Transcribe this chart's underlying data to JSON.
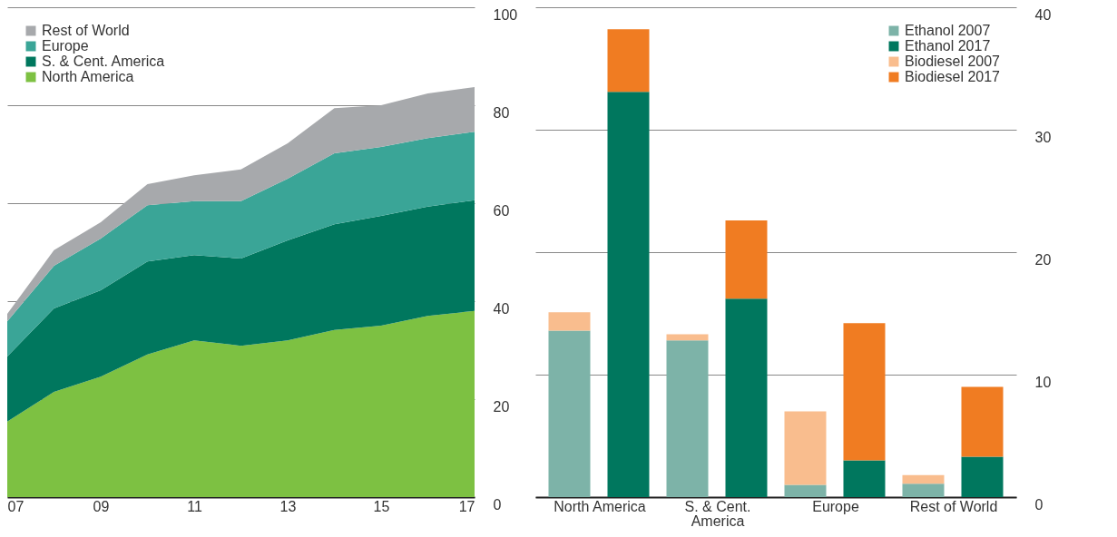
{
  "chart_data": [
    {
      "type": "area",
      "stacked": true,
      "x": [
        2007,
        2008,
        2009,
        2010,
        2011,
        2012,
        2013,
        2014,
        2015,
        2016,
        2017
      ],
      "xlim": [
        2007,
        2017
      ],
      "xticks": [
        {
          "value": 2007,
          "label": "07"
        },
        {
          "value": 2009,
          "label": "09"
        },
        {
          "value": 2011,
          "label": "11"
        },
        {
          "value": 2013,
          "label": "13"
        },
        {
          "value": 2015,
          "label": "15"
        },
        {
          "value": 2017,
          "label": "17"
        }
      ],
      "ylim": [
        0,
        100
      ],
      "yticks": [
        0,
        20,
        40,
        60,
        80,
        100
      ],
      "grid": "y",
      "legend": "top left",
      "series": [
        {
          "name": "North America",
          "color": "#7dc142",
          "values": [
            15.4,
            21.5,
            24.6,
            29.1,
            32.0,
            30.9,
            32.0,
            34.1,
            35.0,
            37.0,
            38.0
          ]
        },
        {
          "name": "S. & Cent. America",
          "color": "#00775e",
          "values": [
            13.3,
            17.0,
            17.6,
            19.0,
            17.4,
            17.8,
            20.4,
            21.6,
            22.4,
            22.3,
            22.6
          ]
        },
        {
          "name": "Europe",
          "color": "#3aa597",
          "values": [
            7.2,
            8.7,
            10.6,
            11.5,
            11.0,
            11.7,
            12.6,
            14.5,
            14.1,
            14.0,
            14.0
          ]
        },
        {
          "name": "Rest of World",
          "color": "#a7a9ac",
          "values": [
            1.5,
            3.2,
            3.3,
            4.3,
            5.3,
            6.5,
            7.2,
            9.2,
            8.5,
            9.1,
            9.1
          ]
        }
      ]
    },
    {
      "type": "bar",
      "stacked": true,
      "categories": [
        "North America",
        null,
        "S. & Cent. America",
        null,
        "Europe",
        null,
        "Rest of World",
        null
      ],
      "ylim": [
        0,
        40
      ],
      "yticks": [
        0,
        10,
        20,
        30,
        40
      ],
      "grid": "y",
      "legend": "top right",
      "series": [
        {
          "name": "Ethanol 2007",
          "color": "#7db3a8",
          "values": [
            13.6,
            null,
            12.8,
            null,
            1.0,
            null,
            1.1,
            null
          ]
        },
        {
          "name": "Ethanol 2017",
          "color": "#00775e",
          "values": [
            null,
            33.1,
            null,
            16.2,
            null,
            3.0,
            null,
            3.3
          ]
        },
        {
          "name": "Biodiesel 2007",
          "color": "#f9bd8e",
          "values": [
            1.5,
            null,
            0.5,
            null,
            6.0,
            null,
            0.7,
            null
          ]
        },
        {
          "name": "Biodiesel 2017",
          "color": "#f07c22",
          "values": [
            null,
            5.1,
            null,
            6.4,
            null,
            11.2,
            null,
            5.7
          ]
        }
      ]
    }
  ]
}
